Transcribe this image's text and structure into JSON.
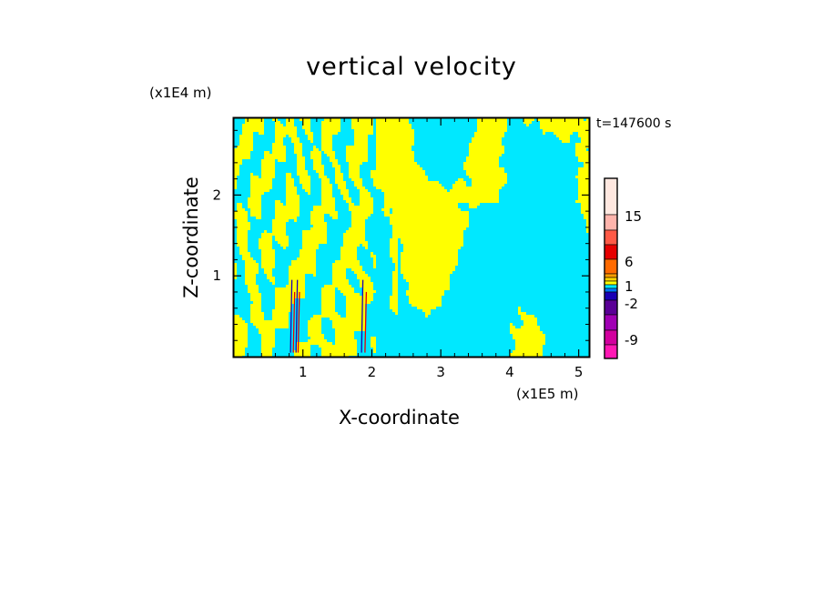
{
  "chart_data": {
    "type": "heatmap",
    "title": "vertical velocity",
    "xlabel": "X-coordinate",
    "ylabel": "Z-coordinate",
    "x_unit": "(x1E5 m)",
    "y_unit": "(x1E4 m)",
    "time_label": "t=147600 s",
    "xlim": [
      0,
      5.15
    ],
    "ylim": [
      0,
      2.95
    ],
    "x_ticks": [
      1,
      2,
      3,
      4,
      5
    ],
    "y_ticks": [
      1,
      2
    ],
    "colorbar": {
      "ticks": [
        15,
        6,
        1,
        -2,
        -9
      ],
      "levels": [
        {
          "color": "#ffe8e0"
        },
        {
          "color": "#ffb4ac"
        },
        {
          "color": "#ff5a46"
        },
        {
          "color": "#e60000"
        },
        {
          "color": "#ff6a00"
        },
        {
          "color": "#ff9e00"
        },
        {
          "color": "#ffd200"
        },
        {
          "color": "#ffff00"
        },
        {
          "color": "#00e8ff"
        },
        {
          "color": "#0078ff"
        },
        {
          "color": "#1a00b4"
        },
        {
          "color": "#5a0096"
        },
        {
          "color": "#a000b4"
        },
        {
          "color": "#d2009e"
        },
        {
          "color": "#ff18b4"
        }
      ]
    },
    "field_colors": {
      "positive": "#ffff00",
      "negative": "#00e8ff",
      "strong_positive": "#e60000",
      "strong_negative": "#1a00b4"
    }
  }
}
